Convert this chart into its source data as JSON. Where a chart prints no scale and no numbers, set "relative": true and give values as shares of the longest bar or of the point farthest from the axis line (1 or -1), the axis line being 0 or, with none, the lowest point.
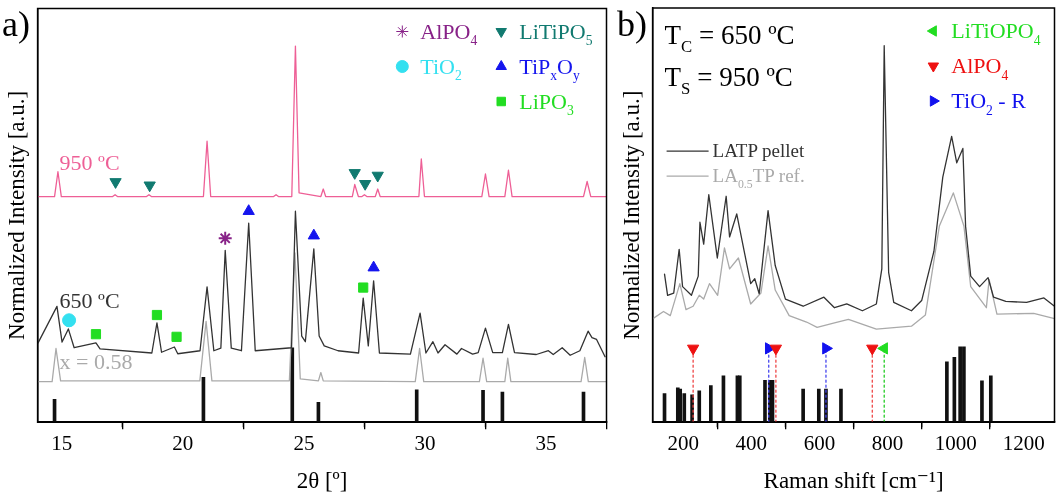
{
  "chart_data": [
    {
      "type": "line",
      "title": "a)",
      "xlabel": "2θ [º]",
      "ylabel": "Normalized Intensity [a.u.]",
      "xlim": [
        14,
        37.5
      ],
      "xticks": [
        15,
        {
          "value": 17.5,
          "label": null
        },
        20,
        {
          "value": 22.5,
          "label": null
        },
        25,
        {
          "value": 27.5,
          "label": null
        },
        30,
        {
          "value": 32.5,
          "label": null
        },
        35
      ],
      "relative": true,
      "tick_labels": "x",
      "legend": "top right",
      "series": [
        {
          "name": "950 ºC",
          "color": "#ee5f96",
          "x": [
            14.0,
            14.7,
            14.84,
            14.98,
            17.1,
            17.2,
            17.3,
            18.5,
            18.6,
            18.7,
            20.85,
            21.0,
            21.15,
            23.75,
            23.85,
            23.95,
            24.5,
            24.65,
            24.8,
            25.7,
            25.8,
            25.9,
            27.0,
            27.1,
            27.25,
            27.4,
            27.5,
            27.6,
            27.95,
            28.05,
            28.15,
            29.75,
            29.85,
            29.98,
            32.35,
            32.5,
            32.65,
            33.3,
            33.45,
            33.6,
            36.55,
            36.7,
            36.85,
            37.5
          ],
          "values": [
            0.6,
            0.6,
            0.666,
            0.6,
            0.6,
            0.605,
            0.6,
            0.6,
            0.605,
            0.6,
            0.6,
            0.747,
            0.6,
            0.6,
            0.605,
            0.6,
            0.6,
            1.0,
            0.61,
            0.6,
            0.62,
            0.6,
            0.6,
            0.632,
            0.6,
            0.6,
            0.605,
            0.6,
            0.6,
            0.62,
            0.6,
            0.6,
            0.7,
            0.6,
            0.6,
            0.66,
            0.6,
            0.6,
            0.67,
            0.6,
            0.6,
            0.64,
            0.6,
            0.6
          ]
        },
        {
          "name": "650 ºC",
          "color": "#333333",
          "x": [
            14.02,
            14.8,
            15.01,
            15.27,
            15.51,
            16.41,
            16.58,
            18.72,
            18.93,
            19.12,
            19.65,
            19.79,
            20.71,
            21.0,
            21.28,
            21.57,
            21.75,
            22.0,
            22.42,
            22.72,
            22.99,
            24.49,
            24.65,
            24.91,
            25.06,
            25.13,
            25.41,
            25.63,
            25.84,
            26.41,
            27.26,
            27.45,
            27.66,
            27.88,
            28.12,
            29.4,
            29.8,
            30.04,
            30.33,
            30.54,
            30.83,
            31.32,
            31.51,
            31.97,
            32.2,
            32.5,
            32.8,
            33.2,
            33.45,
            33.7,
            34.6,
            35.1,
            35.3,
            35.67,
            36.0,
            36.4,
            36.74,
            36.9,
            37.09,
            37.44
          ],
          "values": [
            0.211,
            0.308,
            0.213,
            0.248,
            0.198,
            0.211,
            0.195,
            0.184,
            0.264,
            0.186,
            0.2,
            0.182,
            0.19,
            0.36,
            0.19,
            0.197,
            0.457,
            0.197,
            0.19,
            0.529,
            0.19,
            0.198,
            0.561,
            0.229,
            0.214,
            0.264,
            0.461,
            0.229,
            0.203,
            0.19,
            0.184,
            0.33,
            0.203,
            0.376,
            0.184,
            0.181,
            0.29,
            0.184,
            0.214,
            0.184,
            0.206,
            0.181,
            0.196,
            0.181,
            0.185,
            0.25,
            0.185,
            0.185,
            0.26,
            0.185,
            0.18,
            0.19,
            0.18,
            0.198,
            0.178,
            0.19,
            0.242,
            0.225,
            0.22,
            0.174
          ]
        },
        {
          "name": "x = 0.58",
          "color": "#aaaaaa",
          "x": [
            14.0,
            14.6,
            14.76,
            14.95,
            20.7,
            20.96,
            21.2,
            24.4,
            24.63,
            24.85,
            25.6,
            25.7,
            25.8,
            29.6,
            29.78,
            29.95,
            32.25,
            32.4,
            32.55,
            33.3,
            33.42,
            33.55,
            36.45,
            36.6,
            36.75,
            37.5
          ],
          "values": [
            0.108,
            0.108,
            0.196,
            0.11,
            0.11,
            0.268,
            0.11,
            0.11,
            0.45,
            0.115,
            0.11,
            0.132,
            0.11,
            0.108,
            0.196,
            0.108,
            0.108,
            0.17,
            0.108,
            0.108,
            0.17,
            0.108,
            0.108,
            0.172,
            0.108,
            0.108
          ]
        },
        {
          "type": "bar",
          "color": "#111111",
          "x": [
            14.7,
            20.85,
            24.52,
            25.6,
            29.66,
            32.4,
            33.2,
            36.55
          ],
          "values": [
            0.061,
            0.119,
            0.198,
            0.053,
            0.086,
            0.085,
            0.08,
            0.08
          ]
        },
        {
          "name": "AlPO$_{4}$",
          "type": "scatter",
          "marker": "cross",
          "color": "#882288",
          "x": [
            21.75
          ],
          "values": [
            0.489
          ]
        },
        {
          "name": "TiO$_{2}$",
          "type": "scatter",
          "marker": "circle",
          "color": "#33e0f0",
          "x": [
            15.3
          ],
          "values": [
            0.271
          ]
        },
        {
          "name": "LiTiPO$_{5}$",
          "type": "scatter",
          "marker": "triangle-down",
          "color": "#117a70",
          "x": [
            17.22,
            18.63,
            27.1,
            27.53,
            28.05
          ],
          "values": [
            0.639,
            0.63,
            0.663,
            0.634,
            0.656
          ]
        },
        {
          "name": "TiP$_{x}$O$_{y}$",
          "type": "scatter",
          "marker": "triangle",
          "color": "#1515ee",
          "x": [
            22.72,
            25.41,
            27.88
          ],
          "values": [
            0.561,
            0.496,
            0.411
          ]
        },
        {
          "name": "LiPO$_{3}$",
          "type": "scatter",
          "marker": "square",
          "color": "#22dd22",
          "x": [
            16.41,
            18.93,
            19.74,
            27.45
          ],
          "values": [
            0.234,
            0.285,
            0.227,
            0.358
          ]
        }
      ]
    },
    {
      "type": "line",
      "title": "b)",
      "xlabel": "Raman shift [cm⁻¹]",
      "ylabel": "Normalized Intensity [a.u.]",
      "xlim": [
        110,
        1290
      ],
      "xticks": [
        200,
        {
          "value": 300,
          "label": null
        },
        400,
        {
          "value": 500,
          "label": null
        },
        600,
        {
          "value": 700,
          "label": null
        },
        800,
        {
          "value": 900,
          "label": null
        },
        1000,
        {
          "value": 1100,
          "label": null
        },
        1200
      ],
      "relative": true,
      "tick_labels": "x",
      "legend": "top right",
      "annotations": [
        "T$_{C}$ = 650 ºC",
        "T$_{S}$ = 950 ºC"
      ],
      "series": [
        {
          "name": "LATP pellet",
          "color": "#333333",
          "x": [
            145,
            154,
            172,
            188,
            198,
            224,
            244,
            249,
            260,
            275,
            300,
            326,
            336,
            357,
            398,
            410,
            423,
            449,
            470,
            500,
            552,
            613,
            644,
            680,
            726,
            767,
            783,
            790,
            803,
            818,
            870,
            900,
            936,
            962,
            988,
            1003,
            1021,
            1029,
            1044,
            1070,
            1095,
            1111,
            1147,
            1208,
            1259,
            1290
          ],
          "values": [
            0.393,
            0.337,
            0.343,
            0.459,
            0.36,
            0.337,
            0.388,
            0.531,
            0.473,
            0.604,
            0.436,
            0.6,
            0.492,
            0.553,
            0.368,
            0.381,
            0.341,
            0.562,
            0.416,
            0.327,
            0.308,
            0.332,
            0.304,
            0.314,
            0.296,
            0.314,
            0.407,
            1.0,
            0.398,
            0.318,
            0.296,
            0.323,
            0.454,
            0.651,
            0.759,
            0.689,
            0.727,
            0.52,
            0.388,
            0.36,
            0.384,
            0.332,
            0.321,
            0.318,
            0.33,
            0.308
          ]
        },
        {
          "name": "LA$_{0.5}$TP ref.",
          "color": "#aaaaaa",
          "x": [
            111,
            142,
            162,
            190,
            208,
            229,
            247,
            260,
            277,
            301,
            321,
            336,
            362,
            398,
            428,
            449,
            470,
            511,
            562,
            593,
            644,
            685,
            767,
            870,
            911,
            952,
            993,
            1024,
            1044,
            1090,
            1098,
            1121,
            1229,
            1290
          ],
          "values": [
            0.275,
            0.294,
            0.283,
            0.368,
            0.299,
            0.308,
            0.337,
            0.327,
            0.368,
            0.337,
            0.463,
            0.407,
            0.436,
            0.314,
            0.343,
            0.468,
            0.351,
            0.283,
            0.266,
            0.252,
            0.264,
            0.273,
            0.247,
            0.255,
            0.285,
            0.521,
            0.609,
            0.521,
            0.36,
            0.304,
            0.379,
            0.287,
            0.289,
            0.275
          ]
        },
        {
          "type": "bar",
          "color": "#111111",
          "x": [
            145,
            184,
            191,
            203,
            226,
            247,
            281,
            318,
            359,
            366,
            440,
            454,
            462,
            552,
            598,
            619,
            663,
            974,
            996,
            1013,
            1024,
            1077,
            1103
          ],
          "values": [
            0.076,
            0.091,
            0.088,
            0.076,
            0.073,
            0.083,
            0.097,
            0.123,
            0.123,
            0.123,
            0.111,
            0.111,
            0.111,
            0.088,
            0.088,
            0.088,
            0.088,
            0.16,
            0.172,
            0.2,
            0.2,
            0.11,
            0.123
          ]
        },
        {
          "type": "line",
          "line_style": "dotted",
          "color": "#ee4444",
          "x": [
            229,
            229
          ],
          "values": [
            0,
            0.196
          ]
        },
        {
          "type": "line",
          "line_style": "dotted",
          "color": "#ee4444",
          "x": [
            472,
            472
          ],
          "values": [
            0,
            0.196
          ]
        },
        {
          "type": "line",
          "line_style": "dotted",
          "color": "#ee4444",
          "x": [
            755,
            755
          ],
          "values": [
            0,
            0.196
          ]
        },
        {
          "type": "line",
          "line_style": "dotted",
          "color": "#4444ee",
          "x": [
            451,
            451
          ],
          "values": [
            0,
            0.196
          ]
        },
        {
          "type": "line",
          "line_style": "dotted",
          "color": "#4444ee",
          "x": [
            619,
            619
          ],
          "values": [
            0,
            0.196
          ]
        },
        {
          "type": "line",
          "line_style": "dotted",
          "color": "#22cc22",
          "x": [
            790,
            790
          ],
          "values": [
            0,
            0.196
          ]
        },
        {
          "name": "LiTiOPO$_{4}$",
          "type": "scatter",
          "marker": "triangle-left",
          "color": "#22dd22",
          "x": [
            790
          ],
          "values": [
            0.196
          ]
        },
        {
          "name": "AlPO$_{4}$",
          "type": "scatter",
          "marker": "triangle-down",
          "color": "#ee1111",
          "x": [
            229,
            472,
            755
          ],
          "values": [
            0.196,
            0.196,
            0.196
          ]
        },
        {
          "name": "TiO$_{2}$ - R",
          "type": "scatter",
          "marker": "triangle-right",
          "color": "#1111ee",
          "x": [
            451,
            619
          ],
          "values": [
            0.196,
            0.196
          ]
        }
      ]
    }
  ]
}
